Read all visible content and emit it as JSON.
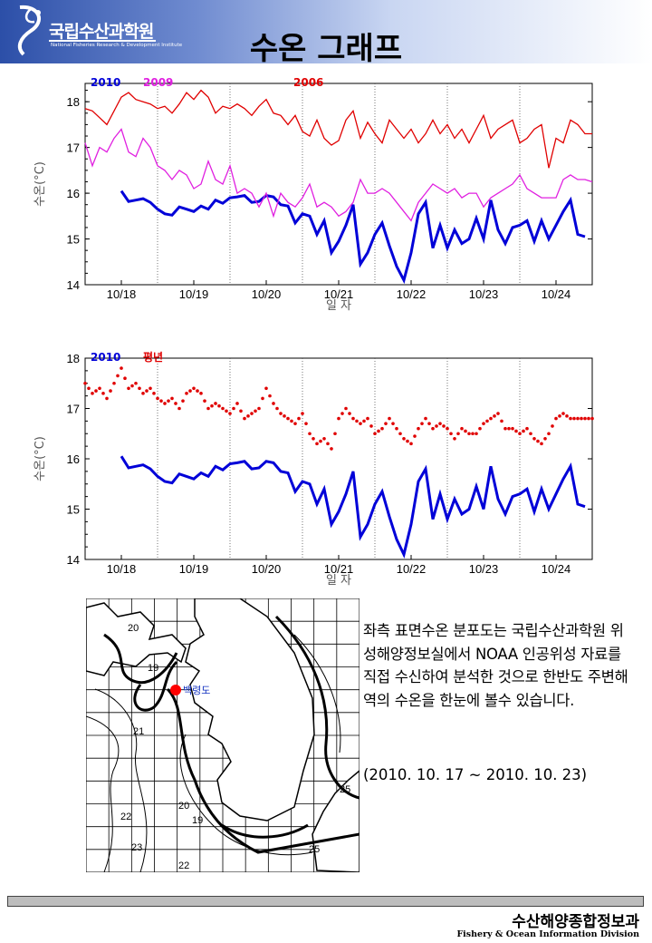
{
  "header": {
    "org_name": "국립수산과학원",
    "org_name_en": "National Fisheries Research & Development Institute",
    "title": "수온 그래프"
  },
  "colors": {
    "blue_2010": "#0000d8",
    "magenta_2009": "#e020e0",
    "red_2006": "#e00000",
    "red_normal": "#e00000"
  },
  "chart_data": [
    {
      "type": "line",
      "title": "",
      "xlabel": "일 자",
      "ylabel": "수온(°C)",
      "ylim": [
        14,
        18.4
      ],
      "y_ticks": [
        "14",
        "15",
        "16",
        "17",
        "18"
      ],
      "x_ticks": [
        "10/18",
        "10/19",
        "10/20",
        "10/21",
        "10/22",
        "10/23",
        "10/24"
      ],
      "xlim": [
        17.5,
        24.5
      ],
      "grid": "vertical dotted",
      "legend": "top-left",
      "series": [
        {
          "name": "2010",
          "color": "#0000d8",
          "x": [
            18.0,
            18.1,
            18.2,
            18.3,
            18.4,
            18.5,
            18.6,
            18.7,
            18.8,
            18.9,
            19.0,
            19.1,
            19.2,
            19.3,
            19.4,
            19.5,
            19.6,
            19.7,
            19.8,
            19.9,
            20.0,
            20.1,
            20.2,
            20.3,
            20.4,
            20.5,
            20.6,
            20.7,
            20.8,
            20.9,
            21.0,
            21.1,
            21.2,
            21.3,
            21.4,
            21.5,
            21.6,
            21.7,
            21.8,
            21.9,
            22.0,
            22.1,
            22.2,
            22.3,
            22.4,
            22.5,
            22.6,
            22.7,
            22.8,
            22.9,
            23.0,
            23.1,
            23.2,
            23.3,
            23.4,
            23.5,
            23.6,
            23.7,
            23.8,
            23.9,
            24.0,
            24.1,
            24.2,
            24.3,
            24.4
          ],
          "y": [
            16.05,
            15.82,
            15.85,
            15.88,
            15.8,
            15.65,
            15.55,
            15.52,
            15.7,
            15.65,
            15.6,
            15.72,
            15.65,
            15.85,
            15.78,
            15.9,
            15.92,
            15.95,
            15.8,
            15.82,
            15.95,
            15.92,
            15.75,
            15.72,
            15.35,
            15.55,
            15.5,
            15.1,
            15.4,
            14.7,
            14.95,
            15.3,
            15.75,
            14.45,
            14.7,
            15.1,
            15.35,
            14.85,
            14.4,
            14.1,
            14.7,
            15.55,
            15.8,
            14.8,
            15.3,
            14.8,
            15.2,
            14.9,
            15.0,
            15.45,
            15.0,
            15.85,
            15.2,
            14.9,
            15.25,
            15.3,
            15.4,
            14.95,
            15.4,
            15.0,
            15.3,
            15.6,
            15.85,
            15.1,
            15.05
          ]
        },
        {
          "name": "2009",
          "color": "#e020e0",
          "x": [
            17.5,
            17.6,
            17.7,
            17.8,
            17.9,
            18.0,
            18.1,
            18.2,
            18.3,
            18.4,
            18.5,
            18.6,
            18.7,
            18.8,
            18.9,
            19.0,
            19.1,
            19.2,
            19.3,
            19.4,
            19.5,
            19.6,
            19.7,
            19.8,
            19.9,
            20.0,
            20.1,
            20.2,
            20.3,
            20.4,
            20.5,
            20.6,
            20.7,
            20.8,
            20.9,
            21.0,
            21.1,
            21.2,
            21.3,
            21.4,
            21.5,
            21.6,
            21.7,
            21.8,
            21.9,
            22.0,
            22.1,
            22.2,
            22.3,
            22.4,
            22.5,
            22.6,
            22.7,
            22.8,
            22.9,
            23.0,
            23.1,
            23.2,
            23.3,
            23.4,
            23.5,
            23.6,
            23.7,
            23.8,
            23.9,
            24.0,
            24.1,
            24.2,
            24.3,
            24.4,
            24.5
          ],
          "y": [
            17.1,
            16.6,
            17.0,
            16.9,
            17.2,
            17.4,
            16.9,
            16.8,
            17.2,
            17.0,
            16.6,
            16.5,
            16.3,
            16.5,
            16.4,
            16.1,
            16.2,
            16.7,
            16.3,
            16.2,
            16.6,
            16.0,
            16.1,
            16.0,
            15.7,
            16.0,
            15.5,
            16.0,
            15.8,
            15.7,
            15.9,
            16.2,
            15.7,
            15.8,
            15.7,
            15.5,
            15.6,
            15.8,
            16.3,
            16.0,
            16.0,
            16.1,
            16.0,
            15.8,
            15.6,
            15.4,
            15.8,
            16.0,
            16.2,
            16.1,
            16.0,
            16.1,
            15.9,
            16.0,
            16.0,
            15.7,
            15.9,
            16.0,
            16.1,
            16.2,
            16.4,
            16.1,
            16.0,
            15.9,
            15.9,
            15.9,
            16.3,
            16.4,
            16.3,
            16.3,
            16.25
          ]
        },
        {
          "name": "2006",
          "color": "#e00000",
          "x": [
            17.5,
            17.6,
            17.7,
            17.8,
            17.9,
            18.0,
            18.1,
            18.2,
            18.3,
            18.4,
            18.5,
            18.6,
            18.7,
            18.8,
            18.9,
            19.0,
            19.1,
            19.2,
            19.3,
            19.4,
            19.5,
            19.6,
            19.7,
            19.8,
            19.9,
            20.0,
            20.1,
            20.2,
            20.3,
            20.4,
            20.5,
            20.6,
            20.7,
            20.8,
            20.9,
            21.0,
            21.1,
            21.2,
            21.3,
            21.4,
            21.5,
            21.6,
            21.7,
            21.8,
            21.9,
            22.0,
            22.1,
            22.2,
            22.3,
            22.4,
            22.5,
            22.6,
            22.7,
            22.8,
            22.9,
            23.0,
            23.1,
            23.2,
            23.3,
            23.4,
            23.5,
            23.6,
            23.7,
            23.8,
            23.9,
            24.0,
            24.1,
            24.2,
            24.3,
            24.4,
            24.5
          ],
          "y": [
            17.85,
            17.8,
            17.65,
            17.5,
            17.8,
            18.1,
            18.2,
            18.05,
            18.0,
            17.95,
            17.85,
            17.9,
            17.75,
            17.95,
            18.2,
            18.05,
            18.25,
            18.1,
            17.75,
            17.9,
            17.85,
            17.95,
            17.85,
            17.7,
            17.9,
            18.05,
            17.75,
            17.7,
            17.5,
            17.7,
            17.35,
            17.25,
            17.6,
            17.2,
            17.05,
            17.15,
            17.6,
            17.8,
            17.2,
            17.55,
            17.3,
            17.1,
            17.6,
            17.4,
            17.2,
            17.4,
            17.1,
            17.3,
            17.6,
            17.3,
            17.5,
            17.2,
            17.4,
            17.1,
            17.4,
            17.7,
            17.2,
            17.4,
            17.5,
            17.6,
            17.1,
            17.2,
            17.4,
            17.5,
            16.55,
            17.2,
            17.1,
            17.6,
            17.5,
            17.3,
            17.3
          ]
        }
      ]
    },
    {
      "type": "line",
      "title": "",
      "xlabel": "일 자",
      "ylabel": "수온(°C)",
      "ylim": [
        14,
        18
      ],
      "y_ticks": [
        "14",
        "15",
        "16",
        "17",
        "18"
      ],
      "x_ticks": [
        "10/18",
        "10/19",
        "10/20",
        "10/21",
        "10/22",
        "10/23",
        "10/24"
      ],
      "xlim": [
        17.5,
        24.5
      ],
      "grid": "vertical dotted",
      "legend": "top-left",
      "series": [
        {
          "name": "2010",
          "color": "#0000d8",
          "x": [
            18.0,
            18.1,
            18.2,
            18.3,
            18.4,
            18.5,
            18.6,
            18.7,
            18.8,
            18.9,
            19.0,
            19.1,
            19.2,
            19.3,
            19.4,
            19.5,
            19.6,
            19.7,
            19.8,
            19.9,
            20.0,
            20.1,
            20.2,
            20.3,
            20.4,
            20.5,
            20.6,
            20.7,
            20.8,
            20.9,
            21.0,
            21.1,
            21.2,
            21.3,
            21.4,
            21.5,
            21.6,
            21.7,
            21.8,
            21.9,
            22.0,
            22.1,
            22.2,
            22.3,
            22.4,
            22.5,
            22.6,
            22.7,
            22.8,
            22.9,
            23.0,
            23.1,
            23.2,
            23.3,
            23.4,
            23.5,
            23.6,
            23.7,
            23.8,
            23.9,
            24.0,
            24.1,
            24.2,
            24.3,
            24.4
          ],
          "y": [
            16.05,
            15.82,
            15.85,
            15.88,
            15.8,
            15.65,
            15.55,
            15.52,
            15.7,
            15.65,
            15.6,
            15.72,
            15.65,
            15.85,
            15.78,
            15.9,
            15.92,
            15.95,
            15.8,
            15.82,
            15.95,
            15.92,
            15.75,
            15.72,
            15.35,
            15.55,
            15.5,
            15.1,
            15.4,
            14.7,
            14.95,
            15.3,
            15.75,
            14.45,
            14.7,
            15.1,
            15.35,
            14.85,
            14.4,
            14.1,
            14.7,
            15.55,
            15.8,
            14.8,
            15.3,
            14.8,
            15.2,
            14.9,
            15.0,
            15.45,
            15.0,
            15.85,
            15.2,
            14.9,
            15.25,
            15.3,
            15.4,
            14.95,
            15.4,
            15.0,
            15.3,
            15.6,
            15.85,
            15.1,
            15.05
          ]
        },
        {
          "name": "평년",
          "color": "#e00000",
          "style": "dotted",
          "x": [
            17.5,
            17.6,
            17.7,
            17.8,
            17.9,
            18.0,
            18.1,
            18.2,
            18.3,
            18.4,
            18.5,
            18.6,
            18.7,
            18.8,
            18.9,
            19.0,
            19.1,
            19.2,
            19.3,
            19.4,
            19.5,
            19.6,
            19.7,
            19.8,
            19.9,
            20.0,
            20.1,
            20.2,
            20.3,
            20.4,
            20.5,
            20.6,
            20.7,
            20.8,
            20.9,
            21.0,
            21.1,
            21.2,
            21.3,
            21.4,
            21.5,
            21.6,
            21.7,
            21.8,
            21.9,
            22.0,
            22.1,
            22.2,
            22.3,
            22.4,
            22.5,
            22.6,
            22.7,
            22.8,
            22.9,
            23.0,
            23.1,
            23.2,
            23.3,
            23.4,
            23.5,
            23.6,
            23.7,
            23.8,
            23.9,
            24.0,
            24.1,
            24.2,
            24.3,
            24.4,
            24.5
          ],
          "y": [
            17.5,
            17.3,
            17.4,
            17.2,
            17.5,
            17.8,
            17.4,
            17.5,
            17.3,
            17.4,
            17.2,
            17.1,
            17.2,
            17.0,
            17.3,
            17.4,
            17.3,
            17.0,
            17.1,
            17.0,
            16.9,
            17.1,
            16.8,
            16.9,
            17.0,
            17.4,
            17.1,
            16.9,
            16.8,
            16.7,
            16.9,
            16.5,
            16.3,
            16.4,
            16.2,
            16.8,
            17.0,
            16.8,
            16.7,
            16.8,
            16.5,
            16.6,
            16.8,
            16.6,
            16.4,
            16.3,
            16.6,
            16.8,
            16.6,
            16.7,
            16.6,
            16.4,
            16.6,
            16.5,
            16.5,
            16.7,
            16.8,
            16.9,
            16.6,
            16.6,
            16.5,
            16.6,
            16.4,
            16.3,
            16.5,
            16.8,
            16.9,
            16.8,
            16.8,
            16.8,
            16.8
          ]
        }
      ]
    }
  ],
  "map": {
    "isotherms": [
      "20",
      "19",
      "21",
      "22",
      "23",
      "22",
      "20",
      "19",
      "25",
      "25"
    ],
    "station_label": "백령도",
    "station_color": "#ff0000"
  },
  "description": {
    "text": "좌측 표면수온 분포도는 국립수산과학원 위성해양정보실에서 NOAA 인공위성 자료를 직접 수신하여 분석한 것으로 한반도 주변해역의 수온을 한눈에 볼수 있습니다.",
    "period": "(2010. 10. 17 ~ 2010. 10. 23)"
  },
  "footer": {
    "org_ko": "수산해양종합정보과",
    "org_en": "Fishery & Ocean Information Division"
  }
}
